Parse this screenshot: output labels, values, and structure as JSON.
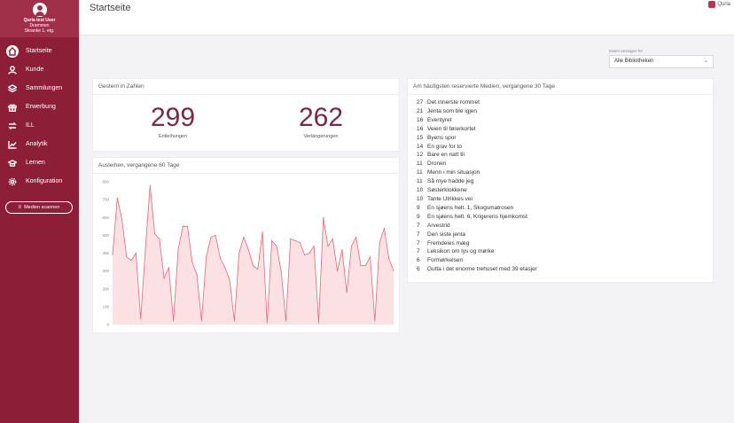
{
  "app": {
    "brand_name": "Quria",
    "colors": {
      "sidebar": "#8c1f37",
      "accent": "#7b2842",
      "chart_line": "#e06b78",
      "chart_fill": "#fbe1e3"
    }
  },
  "user": {
    "name": "Quria test User",
    "location": "Drammen",
    "branch": "Skranke 1. etg."
  },
  "nav": {
    "items": [
      {
        "label": "Startseite",
        "icon": "home-icon",
        "active": true
      },
      {
        "label": "Kunde",
        "icon": "person-icon"
      },
      {
        "label": "Sammlungen",
        "icon": "layers-icon"
      },
      {
        "label": "Erwerbung",
        "icon": "gift-icon"
      },
      {
        "label": "ILL",
        "icon": "transfer-icon"
      },
      {
        "label": "Analytik",
        "icon": "trend-icon"
      },
      {
        "label": "Lernen",
        "icon": "graduation-icon"
      },
      {
        "label": "Konfiguration",
        "icon": "gear-icon"
      }
    ],
    "scan_button": "Medien scannen"
  },
  "header": {
    "title": "Startseite"
  },
  "library_filter": {
    "label": "Daten anzeigen für",
    "value": "Alle Bibliotheken"
  },
  "stats_card": {
    "title": "Gestern in Zahlen",
    "loans_value": "299",
    "loans_label": "Entleihungen",
    "renewals_value": "262",
    "renewals_label": "Verlängerungen"
  },
  "chart_card": {
    "title": "Ausleihen, vergangene 60 Tage"
  },
  "chart_data": {
    "type": "area",
    "title": "Ausleihen, vergangene 60 Tage",
    "ylim": [
      0,
      800
    ],
    "yticks": [
      "800",
      "700",
      "600",
      "500",
      "400",
      "300",
      "200",
      "100",
      "0"
    ],
    "values": [
      390,
      710,
      590,
      380,
      360,
      400,
      30,
      420,
      780,
      510,
      480,
      260,
      320,
      20,
      420,
      550,
      550,
      350,
      280,
      20,
      380,
      490,
      500,
      370,
      320,
      250,
      20,
      400,
      490,
      420,
      330,
      310,
      520,
      10,
      470,
      440,
      300,
      20,
      480,
      470,
      460,
      390,
      400,
      440,
      10,
      600,
      440,
      480,
      300,
      420,
      180,
      440,
      490,
      330,
      330,
      380,
      20,
      460,
      540,
      370,
      300
    ]
  },
  "top_media": {
    "title": "Am häufigsten reservierte Medien, vergangene 30 Tage",
    "items": [
      {
        "count": "27",
        "title": "Det innerste rommet"
      },
      {
        "count": "21",
        "title": "Jenta som ble igjen"
      },
      {
        "count": "16",
        "title": "Eventyret"
      },
      {
        "count": "16",
        "title": "Veien til førerkortet"
      },
      {
        "count": "15",
        "title": "Byens spor"
      },
      {
        "count": "14",
        "title": "En grav for to"
      },
      {
        "count": "12",
        "title": "Bare en natt til"
      },
      {
        "count": "11",
        "title": "Dronen"
      },
      {
        "count": "11",
        "title": "Menn i min situasjon"
      },
      {
        "count": "11",
        "title": "Så mye hadde jeg"
      },
      {
        "count": "10",
        "title": "Søsterklokkene"
      },
      {
        "count": "10",
        "title": "Tante Ulrikkes vei"
      },
      {
        "count": "9",
        "title": "En sjøens helt. 1, Skogsmatrosen"
      },
      {
        "count": "9",
        "title": "En sjøens helt. 6, Krigerens hjemkomst"
      },
      {
        "count": "7",
        "title": "Arvestrid"
      },
      {
        "count": "7",
        "title": "Den siste jenta"
      },
      {
        "count": "7",
        "title": "Fremdeles mæg"
      },
      {
        "count": "7",
        "title": "Leksikon om lys og mørke"
      },
      {
        "count": "6",
        "title": "Formørkelsen"
      },
      {
        "count": "6",
        "title": "Gutta i det enorme trehuset med 39 etasjer"
      }
    ]
  }
}
